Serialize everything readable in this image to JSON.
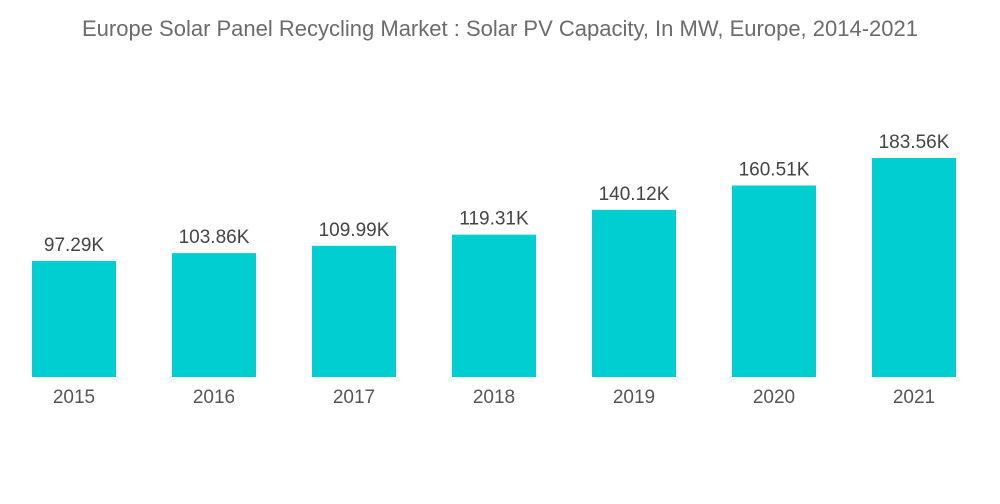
{
  "chart_data": {
    "type": "bar",
    "title": "Europe Solar Panel Recycling Market : Solar PV Capacity, In MW, Europe, 2014-2021",
    "categories": [
      "2015",
      "2016",
      "2017",
      "2018",
      "2019",
      "2020",
      "2021"
    ],
    "values": [
      97.29,
      103.86,
      109.99,
      119.31,
      140.12,
      160.51,
      183.56
    ],
    "data_labels": [
      "97.29K",
      "103.86K",
      "109.99K",
      "119.31K",
      "140.12K",
      "160.51K",
      "183.56K"
    ],
    "value_unit": "K",
    "xlabel": "",
    "ylabel": "",
    "ylim": [
      0,
      183.56
    ],
    "grid": false,
    "y_axis_visible": false,
    "bar_color": "#00CED1"
  }
}
